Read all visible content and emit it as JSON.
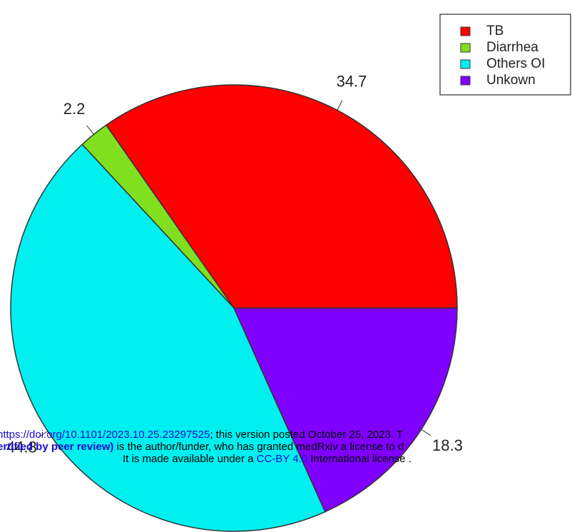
{
  "chart_data": {
    "type": "pie",
    "categories": [
      "TB",
      "Diarrhea",
      "Others OI",
      "Unkown"
    ],
    "values": [
      34.7,
      2.2,
      44.8,
      18.3
    ],
    "colors": [
      "#ff0000",
      "#80e020",
      "#00f0f0",
      "#8000ff"
    ],
    "legend": "top-right"
  },
  "overlay": {
    "line1": [
      "https://doi.org/10.1101/2023.10.25.23297525",
      "; this version posted October 25, 2023. T"
    ],
    "line2": [
      "ertified by peer review)",
      " is the author/funder, who has granted medRxiv a license to d"
    ],
    "line3": [
      "It is made available under a ",
      "CC-BY 4.0",
      " International license ."
    ]
  }
}
